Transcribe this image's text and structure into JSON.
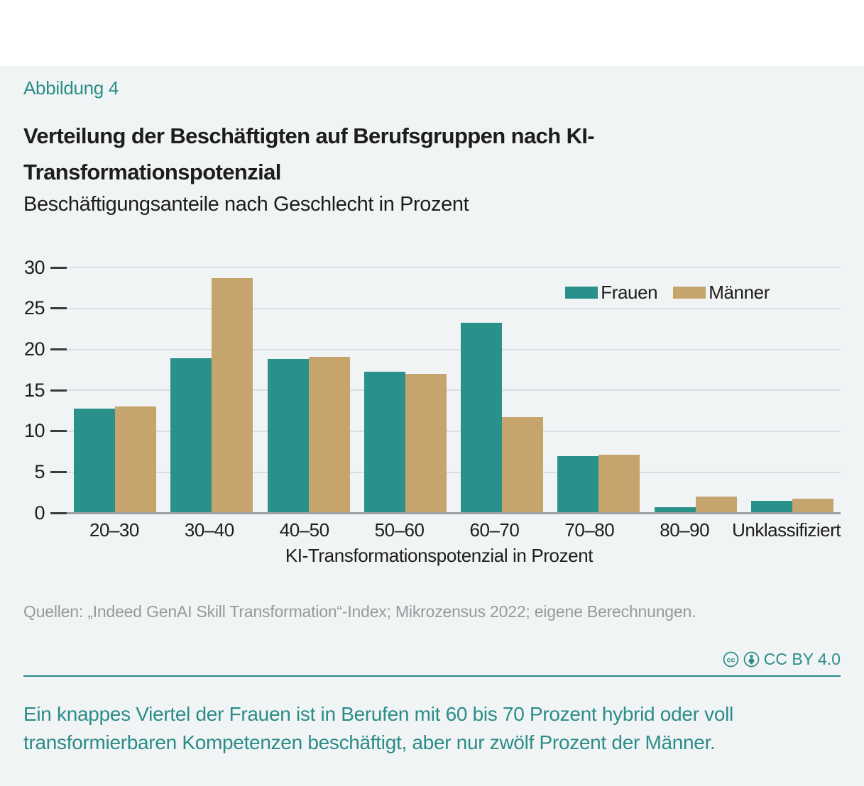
{
  "figure_label": "Abbildung 4",
  "title": "Verteilung der Beschäftigten auf Berufsgruppen nach KI-Transformationspotenzial",
  "subtitle": "Beschäftigungsanteile nach Geschlecht in Prozent",
  "source": "Quellen: „Indeed GenAI Skill Transformation“-Index; Mikrozensus 2022; eigene Berechnungen.",
  "license": {
    "label": "CC BY 4.0"
  },
  "caption": "Ein knappes Viertel der Frauen ist in Berufen mit 60 bis 70 Prozent hybrid oder voll transformierbaren Kompetenzen beschäftigt, aber nur zwölf Prozent der Männer.",
  "colors": {
    "accent_teal": "#2B8C88",
    "frauen": "#2A918A",
    "maenner": "#C5A46E",
    "background_band": "#F1F4F5"
  },
  "chart_data": {
    "type": "bar",
    "categories": [
      "20–30",
      "30–40",
      "40–50",
      "50–60",
      "60–70",
      "70–80",
      "80–90",
      "Unklassifiziert"
    ],
    "series": [
      {
        "name": "Frauen",
        "color": "#2A918A",
        "values": [
          12.8,
          18.9,
          18.8,
          17.3,
          23.3,
          7.0,
          0.7,
          1.5
        ]
      },
      {
        "name": "Männer",
        "color": "#C5A46E",
        "values": [
          13.0,
          28.7,
          19.1,
          17.0,
          11.7,
          7.1,
          2.0,
          1.8
        ]
      }
    ],
    "title": "Verteilung der Beschäftigten auf Berufsgruppen nach KI-Transformationspotenzial",
    "xlabel": "KI-Transformationspotenzial in Prozent",
    "ylabel": "",
    "ylim": [
      0,
      30
    ],
    "yticks": [
      0,
      5,
      10,
      15,
      20,
      25,
      30
    ],
    "grid": true,
    "legend_position": "top-right"
  }
}
